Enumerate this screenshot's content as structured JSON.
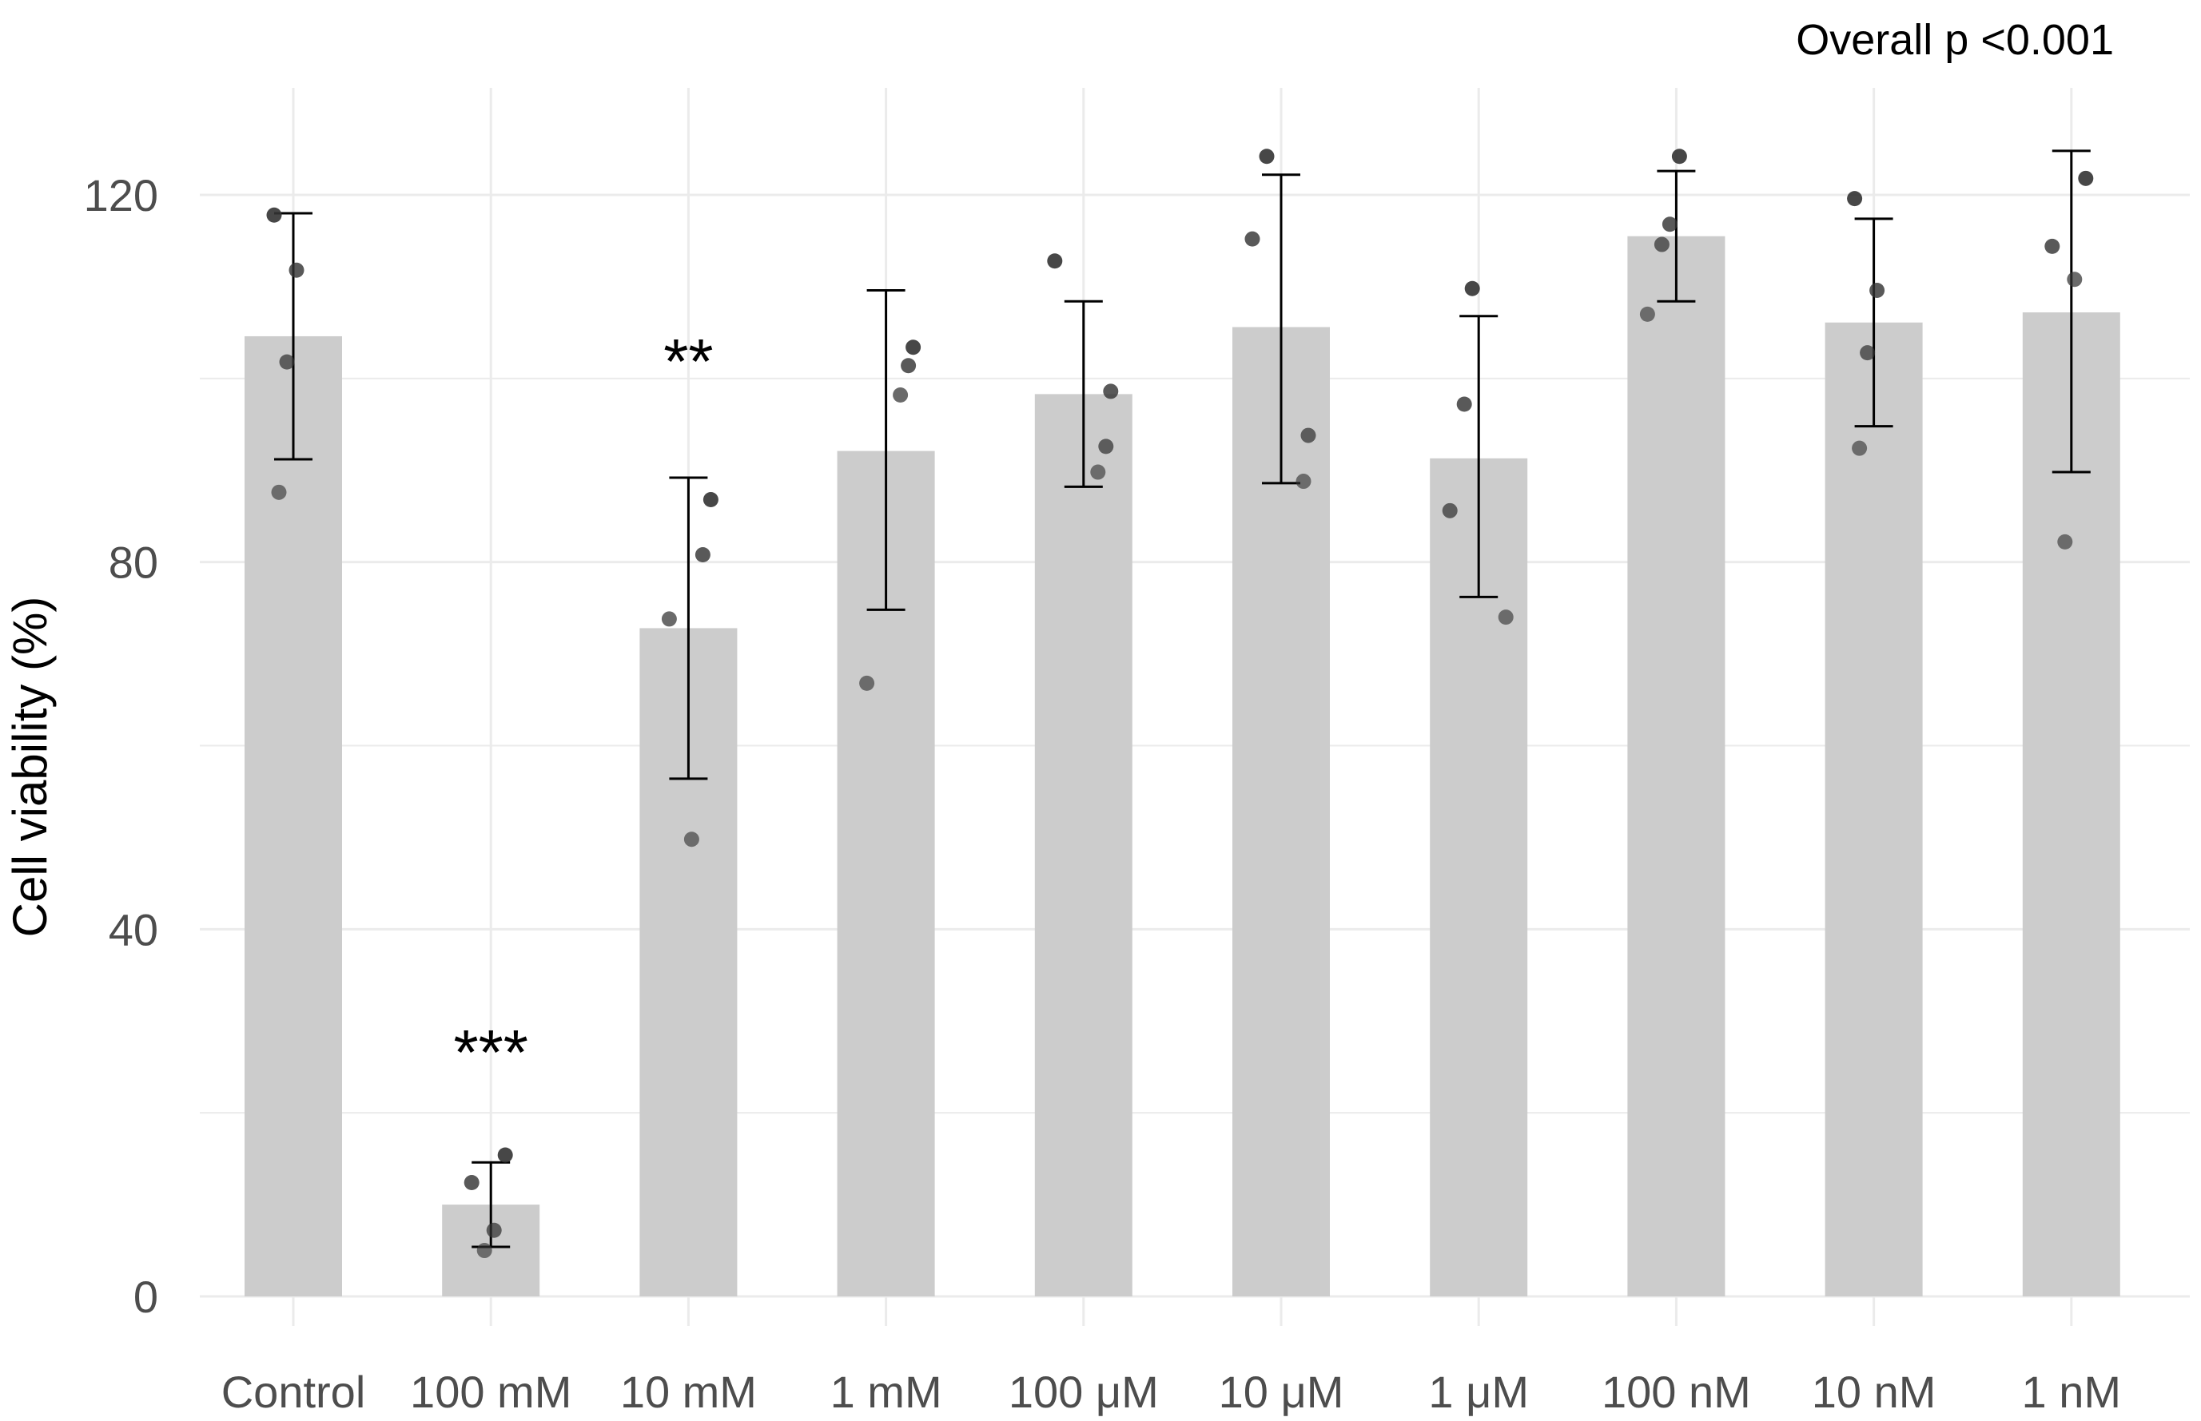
{
  "chart_data": {
    "type": "bar",
    "title": "",
    "xlabel": "",
    "ylabel": "Cell viability (%)",
    "annotation": "Overall p <0.001",
    "ylim": [
      -6,
      134
    ],
    "yticks": [
      0,
      40,
      80,
      120
    ],
    "grid": true,
    "categories": [
      "Control",
      "100 mM",
      "10 mM",
      "1 mM",
      "100 μM",
      "10 μM",
      "1 μM",
      "100 nM",
      "10 nM",
      "1 nM"
    ],
    "values": [
      104.6,
      10.0,
      72.8,
      92.1,
      98.3,
      105.6,
      91.3,
      115.5,
      106.1,
      107.2
    ],
    "error_low": [
      91.2,
      5.4,
      56.4,
      74.8,
      88.2,
      88.6,
      76.2,
      108.4,
      94.8,
      89.8
    ],
    "error_high": [
      118.0,
      14.6,
      89.2,
      109.6,
      108.4,
      122.2,
      106.8,
      122.6,
      117.4,
      124.8
    ],
    "significance": [
      "",
      "***",
      "**",
      "",
      "",
      "",
      "",
      "",
      "",
      ""
    ],
    "points": [
      [
        117.8,
        111.8,
        101.8,
        87.6
      ],
      [
        15.4,
        12.4,
        7.2,
        5.0
      ],
      [
        86.8,
        80.8,
        73.8,
        49.8
      ],
      [
        103.4,
        101.4,
        98.2,
        66.8
      ],
      [
        112.8,
        98.6,
        92.6,
        89.8
      ],
      [
        124.2,
        115.2,
        93.8,
        88.8
      ],
      [
        109.8,
        97.2,
        85.6,
        74.0
      ],
      [
        124.2,
        116.8,
        114.6,
        107.0
      ],
      [
        119.6,
        109.6,
        102.8,
        92.4
      ],
      [
        121.8,
        114.4,
        110.8,
        82.2
      ]
    ],
    "colors": {
      "bar": "#cccccc",
      "grid": "#ebebeb",
      "point": "#333333",
      "errorbar": "#000000"
    }
  }
}
